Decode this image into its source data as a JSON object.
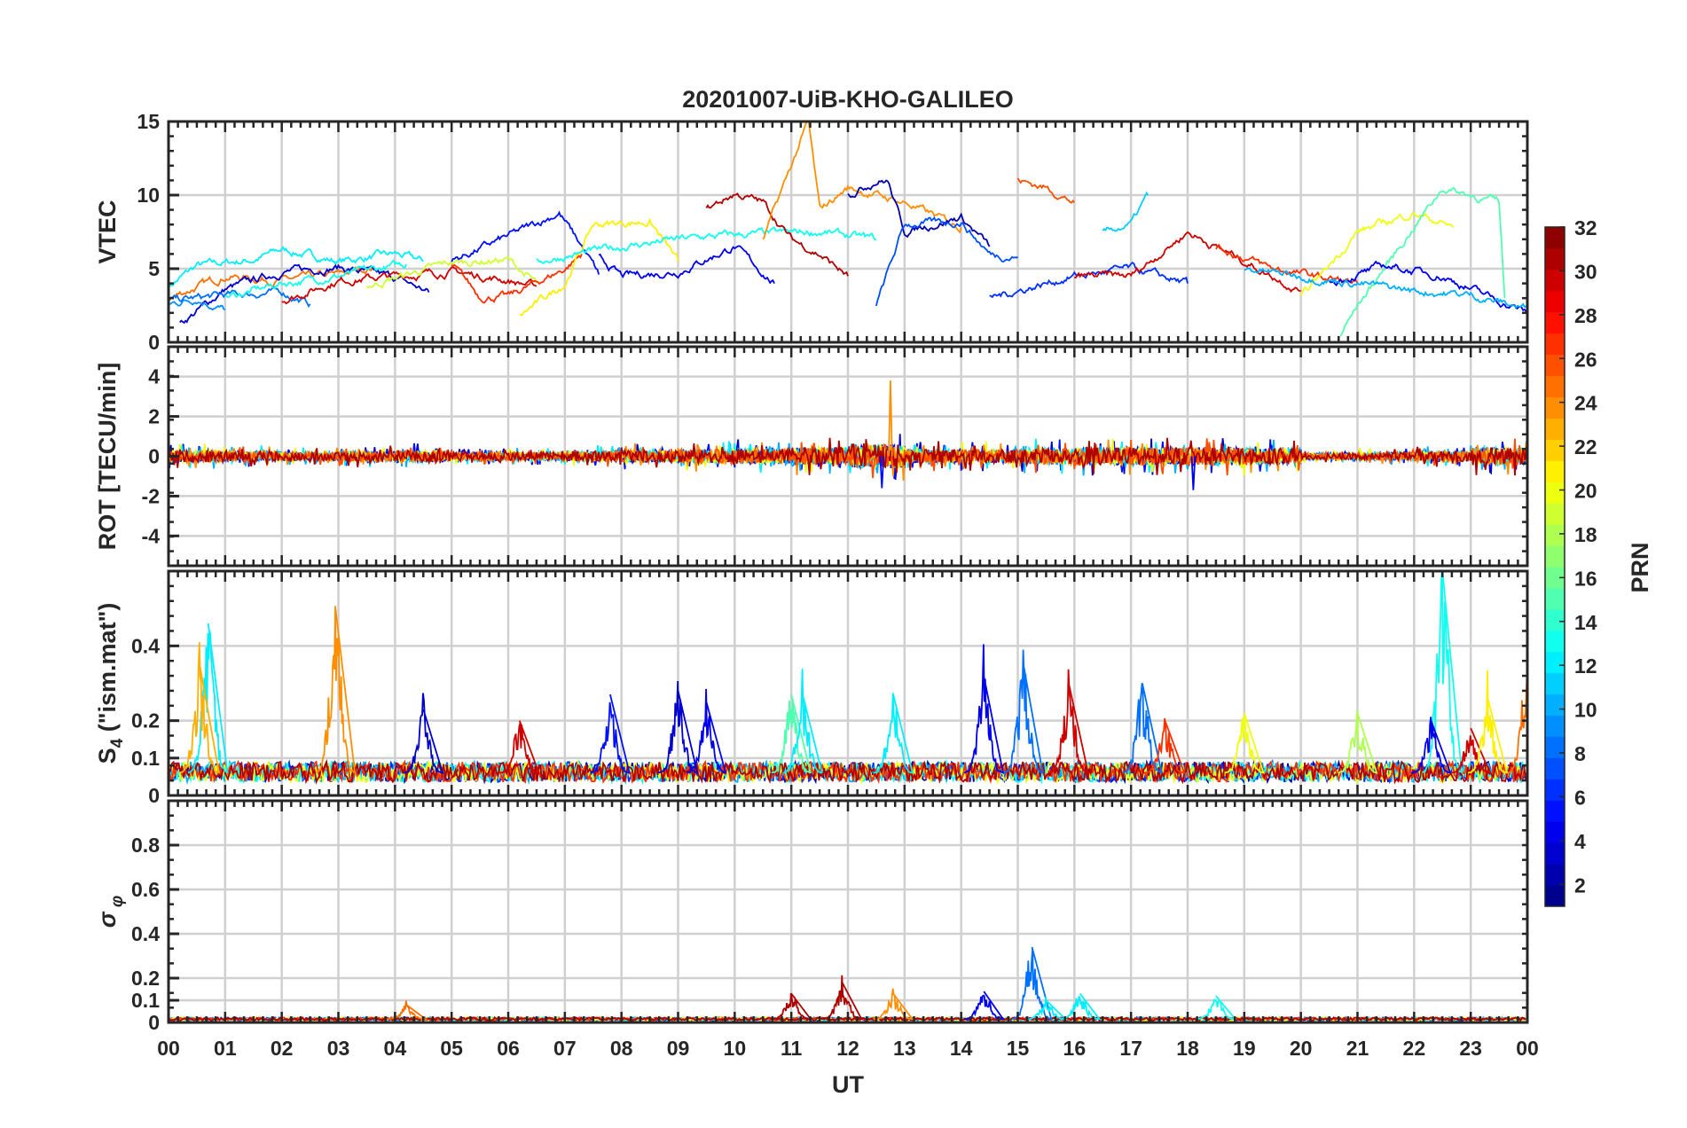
{
  "chart_data": {
    "type": "line",
    "title": "20201007-UiB-KHO-GALILEO",
    "xlabel": "UT",
    "xlim": [
      0,
      24
    ],
    "xtick_labels": [
      "00",
      "01",
      "02",
      "03",
      "04",
      "05",
      "06",
      "07",
      "08",
      "09",
      "10",
      "11",
      "12",
      "13",
      "14",
      "15",
      "16",
      "17",
      "18",
      "19",
      "20",
      "21",
      "22",
      "23",
      "00"
    ],
    "grid": true,
    "colorbar": {
      "label": "PRN",
      "range": [
        1,
        32
      ],
      "colormap": "jet",
      "levels": 32,
      "tick_labels": [
        "2",
        "4",
        "6",
        "8",
        "10",
        "12",
        "14",
        "16",
        "18",
        "20",
        "22",
        "24",
        "26",
        "28",
        "30",
        "32"
      ],
      "placement": "right"
    },
    "panels": [
      {
        "name": "vtec",
        "ylabel": "VTEC",
        "ylim": [
          0,
          15
        ],
        "ytick_labels": [
          "0",
          "5",
          "10",
          "15"
        ],
        "yticks": [
          0,
          5,
          10,
          15
        ],
        "series": [
          {
            "prn": 12,
            "x": [
              0,
              0.5,
              1.5,
              2,
              3,
              4,
              4.5
            ],
            "y": [
              3.8,
              5.2,
              5.6,
              6.3,
              5.5,
              6,
              5.5
            ]
          },
          {
            "prn": 25,
            "x": [
              0,
              1,
              2,
              3,
              3.6
            ],
            "y": [
              3,
              4.5,
              4.2,
              4.6,
              5.1
            ]
          },
          {
            "prn": 3,
            "x": [
              0.2,
              1,
              2,
              3,
              4,
              4.6
            ],
            "y": [
              1.2,
              3.6,
              4.8,
              5.1,
              4.4,
              3.4
            ]
          },
          {
            "prn": 9,
            "x": [
              0,
              0.5,
              1
            ],
            "y": [
              2.6,
              3,
              2.2
            ]
          },
          {
            "prn": 8,
            "x": [
              0,
              1,
              2,
              2.5
            ],
            "y": [
              2.8,
              3.2,
              3.4,
              2.6
            ]
          },
          {
            "prn": 13,
            "x": [
              1,
              2,
              3,
              4.2
            ],
            "y": [
              3,
              4,
              4.5,
              5.3
            ]
          },
          {
            "prn": 30,
            "x": [
              2,
              3,
              4,
              5,
              6,
              6.5
            ],
            "y": [
              2.8,
              4.2,
              4.5,
              4.8,
              4.2,
              3.8
            ]
          },
          {
            "prn": 19,
            "x": [
              3.5,
              4.5,
              5,
              6,
              6.5
            ],
            "y": [
              3.8,
              4.9,
              5.4,
              5.6,
              4
            ]
          },
          {
            "prn": 27,
            "x": [
              5,
              5.5,
              6,
              7,
              7.3
            ],
            "y": [
              5.3,
              3.1,
              3.1,
              5,
              6
            ]
          },
          {
            "prn": 5,
            "x": [
              5,
              6,
              6.9,
              7.3,
              7.6
            ],
            "y": [
              5.5,
              7.2,
              8.8,
              6.5,
              4.6
            ]
          },
          {
            "prn": 21,
            "x": [
              6.2,
              7,
              7.5,
              8.5,
              9
            ],
            "y": [
              1.8,
              4,
              8,
              8.2,
              5.5
            ]
          },
          {
            "prn": 4,
            "x": [
              7.6,
              8,
              9,
              10,
              10.7
            ],
            "y": [
              5.8,
              4.5,
              4.8,
              6.5,
              4
            ]
          },
          {
            "prn": 13,
            "x": [
              6.5,
              8,
              9,
              10,
              11.5,
              12.5
            ],
            "y": [
              5.5,
              6.5,
              7,
              7.3,
              7.5,
              7
            ]
          },
          {
            "prn": 31,
            "x": [
              9.5,
              10,
              10.5,
              11,
              11.5,
              12
            ],
            "y": [
              9,
              10.1,
              9.5,
              7,
              6,
              4.5
            ]
          },
          {
            "prn": 24,
            "x": [
              10.5,
              11,
              11.3,
              11.5,
              12,
              13,
              14
            ],
            "y": [
              7,
              12,
              15,
              9,
              10.5,
              9.5,
              7.8
            ]
          },
          {
            "prn": 2,
            "x": [
              12,
              12.5,
              12.7,
              13,
              14,
              14.5
            ],
            "y": [
              10,
              11,
              11,
              7.5,
              8.5,
              6.5
            ]
          },
          {
            "prn": 7,
            "x": [
              12.5,
              13,
              14,
              14.5,
              15
            ],
            "y": [
              2.5,
              8,
              8.2,
              6,
              5.8
            ]
          },
          {
            "prn": 26,
            "x": [
              15,
              15.5,
              16
            ],
            "y": [
              11,
              10.5,
              9.5
            ]
          },
          {
            "prn": 6,
            "x": [
              14.5,
              15,
              16,
              17,
              18
            ],
            "y": [
              3,
              3.5,
              4.5,
              5,
              4
            ]
          },
          {
            "prn": 11,
            "x": [
              16.5,
              17,
              17.3
            ],
            "y": [
              7.5,
              8,
              10
            ]
          },
          {
            "prn": 30,
            "x": [
              16,
              17,
              18,
              19,
              20
            ],
            "y": [
              4.5,
              4.5,
              7.5,
              5.5,
              3.5
            ]
          },
          {
            "prn": 27,
            "x": [
              18.5,
              19.5,
              21
            ],
            "y": [
              6.5,
              5,
              4
            ]
          },
          {
            "prn": 20,
            "x": [
              20,
              21,
              22,
              22.7
            ],
            "y": [
              3,
              7.5,
              8.8,
              7.8
            ]
          },
          {
            "prn": 15,
            "x": [
              20.7,
              21,
              22.5,
              23.5,
              23.6
            ],
            "y": [
              0.5,
              2.5,
              10.5,
              9.5,
              3
            ]
          },
          {
            "prn": 4,
            "x": [
              20.5,
              21.5,
              22.5,
              23.5,
              24
            ],
            "y": [
              4,
              5.2,
              4.5,
              2.8,
              2
            ]
          },
          {
            "prn": 10,
            "x": [
              19,
              21,
              22,
              23,
              24
            ],
            "y": [
              5,
              4,
              3.5,
              3.2,
              2.3
            ]
          }
        ]
      },
      {
        "name": "rot",
        "ylabel": "ROT [TECU/min]",
        "ylim": [
          -5.5,
          5.5
        ],
        "ytick_labels": [
          "-4",
          "-2",
          "0",
          "2",
          "4"
        ],
        "yticks": [
          -4,
          -2,
          0,
          2,
          4
        ],
        "hourly_amplitude": [
          0.6,
          0.5,
          0.4,
          0.5,
          0.6,
          0.4,
          0.4,
          0.5,
          0.6,
          0.7,
          0.8,
          0.9,
          1.2,
          0.7,
          0.7,
          0.8,
          0.9,
          0.9,
          0.9,
          0.8,
          0.3,
          0.4,
          0.5,
          0.9
        ],
        "spikes": [
          {
            "x": 12.75,
            "y": 3.8,
            "prn": 24
          },
          {
            "x": 12.6,
            "y": -1.6,
            "prn": 5
          },
          {
            "x": 18.1,
            "y": -1.7,
            "prn": 4
          }
        ]
      },
      {
        "name": "s4",
        "ylabel": "S4 (\"ism.mat\")",
        "ylim": [
          0,
          0.6
        ],
        "ytick_labels": [
          "0",
          "0.1",
          "0.2",
          "0.4"
        ],
        "yticks": [
          0,
          0.1,
          0.2,
          0.4
        ],
        "baseline": 0.06,
        "spikes": [
          {
            "x": 0.7,
            "y": 0.46,
            "prn": 12
          },
          {
            "x": 0.55,
            "y": 0.35,
            "prn": 23
          },
          {
            "x": 2.95,
            "y": 0.5,
            "prn": 24
          },
          {
            "x": 4.5,
            "y": 0.23,
            "prn": 3
          },
          {
            "x": 6.2,
            "y": 0.2,
            "prn": 30
          },
          {
            "x": 7.8,
            "y": 0.27,
            "prn": 5
          },
          {
            "x": 9.0,
            "y": 0.28,
            "prn": 3
          },
          {
            "x": 9.5,
            "y": 0.25,
            "prn": 4
          },
          {
            "x": 11.0,
            "y": 0.27,
            "prn": 15
          },
          {
            "x": 11.2,
            "y": 0.27,
            "prn": 12
          },
          {
            "x": 12.8,
            "y": 0.27,
            "prn": 12
          },
          {
            "x": 14.4,
            "y": 0.32,
            "prn": 4
          },
          {
            "x": 15.1,
            "y": 0.35,
            "prn": 8
          },
          {
            "x": 15.9,
            "y": 0.3,
            "prn": 30
          },
          {
            "x": 17.2,
            "y": 0.3,
            "prn": 8
          },
          {
            "x": 17.6,
            "y": 0.2,
            "prn": 27
          },
          {
            "x": 19.0,
            "y": 0.22,
            "prn": 20
          },
          {
            "x": 21.0,
            "y": 0.22,
            "prn": 18
          },
          {
            "x": 22.5,
            "y": 0.6,
            "prn": 13
          },
          {
            "x": 22.3,
            "y": 0.2,
            "prn": 4
          },
          {
            "x": 23.0,
            "y": 0.18,
            "prn": 30
          },
          {
            "x": 23.3,
            "y": 0.26,
            "prn": 21
          },
          {
            "x": 24.0,
            "y": 0.36,
            "prn": 25
          }
        ]
      },
      {
        "name": "sigma",
        "ylabel": "σφ",
        "ylim": [
          0,
          1
        ],
        "ytick_labels": [
          "0",
          "0.1",
          "0.2",
          "0.4",
          "0.6",
          "0.8"
        ],
        "yticks": [
          0,
          0.1,
          0.2,
          0.4,
          0.6,
          0.8
        ],
        "baseline": 0.015,
        "spikes": [
          {
            "x": 11.0,
            "y": 0.13,
            "prn": 31
          },
          {
            "x": 11.9,
            "y": 0.18,
            "prn": 31
          },
          {
            "x": 12.8,
            "y": 0.13,
            "prn": 24
          },
          {
            "x": 14.4,
            "y": 0.14,
            "prn": 4
          },
          {
            "x": 15.25,
            "y": 0.34,
            "prn": 8
          },
          {
            "x": 15.5,
            "y": 0.1,
            "prn": 12
          },
          {
            "x": 16.1,
            "y": 0.13,
            "prn": 12
          },
          {
            "x": 18.5,
            "y": 0.12,
            "prn": 13
          },
          {
            "x": 4.2,
            "y": 0.08,
            "prn": 25
          }
        ]
      }
    ]
  }
}
